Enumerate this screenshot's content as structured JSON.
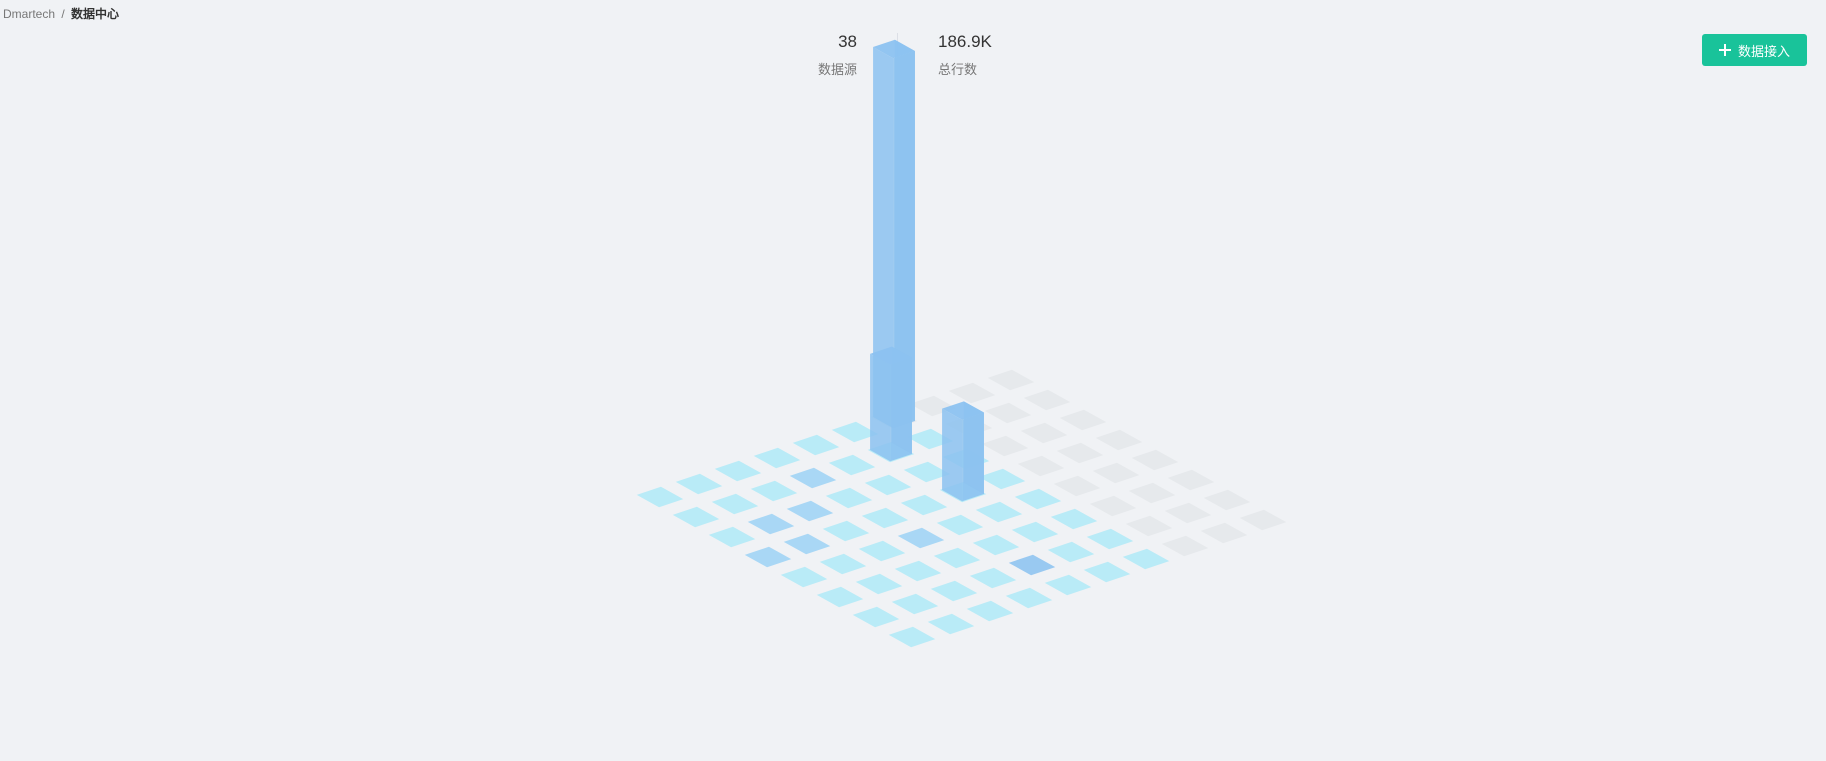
{
  "breadcrumb": {
    "root": "Dmartech",
    "separator": "/",
    "current": "数据中心"
  },
  "stats": {
    "sources": {
      "value": "38",
      "label": "数据源"
    },
    "rows": {
      "value": "186.9K",
      "label": "总行数"
    }
  },
  "actions": {
    "connect_label": "数据接入",
    "connect_icon": "plus-icon",
    "connect_color": "#19c39a"
  },
  "colors": {
    "background": "#f0f2f5",
    "tile_active": "#b9ebf7",
    "tile_medium": "#a9d7f5",
    "tile_strong": "#99c9f1",
    "tile_empty": "#e6e9ec",
    "bar": "#8cc2f0"
  },
  "chart_data": {
    "type": "bar3d",
    "rows": 8,
    "cols": 10,
    "tiles": [
      [
        0,
        0,
        1
      ],
      [
        0,
        1,
        1
      ],
      [
        0,
        2,
        1
      ],
      [
        0,
        3,
        1
      ],
      [
        0,
        4,
        1
      ],
      [
        0,
        5,
        1
      ],
      [
        0,
        6,
        0
      ],
      [
        0,
        7,
        0
      ],
      [
        0,
        8,
        0
      ],
      [
        0,
        9,
        0
      ],
      [
        1,
        0,
        1
      ],
      [
        1,
        1,
        1
      ],
      [
        1,
        2,
        1
      ],
      [
        1,
        3,
        2
      ],
      [
        1,
        4,
        1
      ],
      [
        1,
        5,
        1
      ],
      [
        1,
        6,
        1
      ],
      [
        1,
        7,
        0
      ],
      [
        1,
        8,
        0
      ],
      [
        1,
        9,
        0
      ],
      [
        2,
        0,
        1
      ],
      [
        2,
        1,
        2
      ],
      [
        2,
        2,
        2
      ],
      [
        2,
        3,
        1
      ],
      [
        2,
        4,
        1
      ],
      [
        2,
        5,
        1
      ],
      [
        2,
        6,
        1
      ],
      [
        2,
        7,
        0
      ],
      [
        2,
        8,
        0
      ],
      [
        2,
        9,
        0
      ],
      [
        3,
        0,
        2
      ],
      [
        3,
        1,
        2
      ],
      [
        3,
        2,
        1
      ],
      [
        3,
        3,
        1
      ],
      [
        3,
        4,
        1
      ],
      [
        3,
        5,
        1
      ],
      [
        3,
        6,
        1
      ],
      [
        3,
        7,
        0
      ],
      [
        3,
        8,
        0
      ],
      [
        3,
        9,
        0
      ],
      [
        4,
        0,
        1
      ],
      [
        4,
        1,
        1
      ],
      [
        4,
        2,
        1
      ],
      [
        4,
        3,
        2
      ],
      [
        4,
        4,
        1
      ],
      [
        4,
        5,
        1
      ],
      [
        4,
        6,
        1
      ],
      [
        4,
        7,
        0
      ],
      [
        4,
        8,
        0
      ],
      [
        4,
        9,
        0
      ],
      [
        5,
        0,
        1
      ],
      [
        5,
        1,
        1
      ],
      [
        5,
        2,
        1
      ],
      [
        5,
        3,
        1
      ],
      [
        5,
        4,
        1
      ],
      [
        5,
        5,
        1
      ],
      [
        5,
        6,
        1
      ],
      [
        5,
        7,
        0
      ],
      [
        5,
        8,
        0
      ],
      [
        5,
        9,
        0
      ],
      [
        6,
        0,
        1
      ],
      [
        6,
        1,
        1
      ],
      [
        6,
        2,
        1
      ],
      [
        6,
        3,
        1
      ],
      [
        6,
        4,
        3
      ],
      [
        6,
        5,
        1
      ],
      [
        6,
        6,
        1
      ],
      [
        6,
        7,
        0
      ],
      [
        6,
        8,
        0
      ],
      [
        6,
        9,
        0
      ],
      [
        7,
        0,
        1
      ],
      [
        7,
        1,
        1
      ],
      [
        7,
        2,
        1
      ],
      [
        7,
        3,
        1
      ],
      [
        7,
        4,
        1
      ],
      [
        7,
        5,
        1
      ],
      [
        7,
        6,
        1
      ],
      [
        7,
        7,
        0
      ],
      [
        7,
        8,
        0
      ],
      [
        7,
        9,
        0
      ]
    ],
    "bars": [
      {
        "row": 0,
        "col": 6,
        "value": 100
      },
      {
        "row": 1,
        "col": 5,
        "value": 26
      },
      {
        "row": 3,
        "col": 5,
        "value": 22
      }
    ],
    "zlim": [
      0,
      100
    ]
  }
}
